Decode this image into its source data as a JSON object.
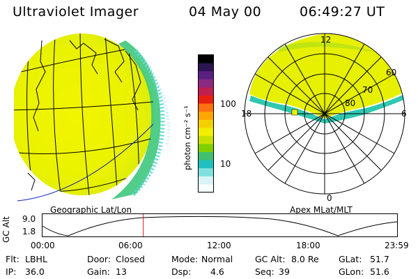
{
  "header": {
    "title": "Ultraviolet Imager",
    "date": "04 May 00",
    "time": "06:49:27 UT"
  },
  "left_panel": {
    "caption": "Geographic Lat/Lon"
  },
  "right_panel": {
    "caption": "Apex MLat/MLT",
    "mlt_labels": {
      "top": "12",
      "bottom": "0",
      "left": "18",
      "right": "6"
    },
    "lat_labels": [
      "60",
      "70",
      "80"
    ]
  },
  "colorbar": {
    "unit_label": "photon cm⁻² s⁻¹",
    "ticks": [
      "100",
      "10"
    ],
    "colors": [
      "#000000",
      "#2c1450",
      "#5a2080",
      "#8a2a80",
      "#c02050",
      "#e82010",
      "#ff7010",
      "#ffa500",
      "#f5d000",
      "#f0f000",
      "#c8e000",
      "#80d000",
      "#40c070",
      "#20c0c0",
      "#80e0e0",
      "#d8f4f4",
      "#f8ffff"
    ]
  },
  "timeline": {
    "ylabel": "GC Alt",
    "y_ticks": [
      "9.0",
      "1.8"
    ],
    "x_ticks": [
      "00:00",
      "06:00",
      "12:00",
      "18:00",
      "23:59"
    ],
    "marker_hour": 6.82,
    "marker_color": "#d02020"
  },
  "status": {
    "row1": [
      {
        "key": "Flt:",
        "value": "LBHL"
      },
      {
        "key": "Door:",
        "value": "Closed"
      },
      {
        "key": "Mode:",
        "value": "Normal"
      },
      {
        "key": "GC Alt:",
        "value": "8.0 Re"
      },
      {
        "key": "GLat:",
        "value": "51.7"
      }
    ],
    "row2": [
      {
        "key": "IP:",
        "value": "36.0"
      },
      {
        "key": "Gain:",
        "value": "13"
      },
      {
        "key": "Dsp:",
        "value": "4.6"
      },
      {
        "key": "Seq:",
        "value": "39"
      },
      {
        "key": "GLon:",
        "value": "51.6"
      }
    ]
  }
}
